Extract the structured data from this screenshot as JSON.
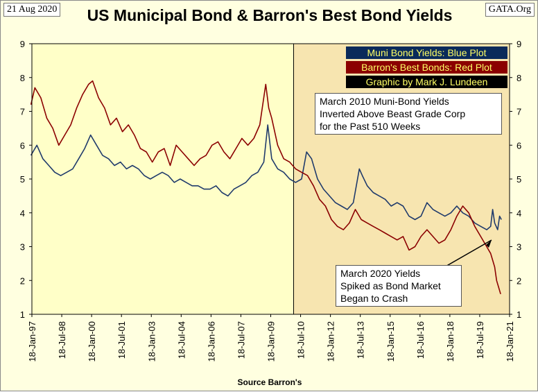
{
  "header": {
    "date": "21 Aug 2020",
    "site": "GATA.Org"
  },
  "chart_data": {
    "type": "line",
    "title": "US Municipal Bond & Barron's Best Bond Yields",
    "xlabel": "Source Barron's",
    "ylabel": "",
    "ylim": [
      1,
      9
    ],
    "y_ticks": [
      1,
      2,
      3,
      4,
      5,
      6,
      7,
      8,
      9
    ],
    "x_tick_labels": [
      "18-Jan-97",
      "18-Jul-98",
      "18-Jan-00",
      "18-Jul-01",
      "18-Jan-03",
      "18-Jul-04",
      "18-Jan-06",
      "18-Jul-07",
      "18-Jan-09",
      "18-Jul-10",
      "18-Jan-12",
      "18-Jul-13",
      "18-Jan-15",
      "18-Jul-16",
      "18-Jan-18",
      "18-Jul-19",
      "18-Jan-21"
    ],
    "grid": false,
    "legend": [
      {
        "text": "Muni Bond Yields: Blue Plot",
        "color": "#0a2a5a"
      },
      {
        "text": "Barron's Best Bonds: Red Plot",
        "color": "#8b0000"
      },
      {
        "text": "Graphic by Mark J. Lundeen",
        "color": "#000000"
      }
    ],
    "legend_position": "top-right",
    "shaded_region_start": 2010.2,
    "annotations": [
      {
        "lines": [
          "March 2010 Muni-Bond Yields",
          "Inverted  Above Beast Grade Corp",
          "for the Past 510 Weeks"
        ]
      },
      {
        "lines": [
          "March 2020 Yields",
          "Spiked as Bond Market",
          "Began to Crash"
        ]
      }
    ],
    "series": [
      {
        "name": "Muni Bond Yields: Blue Plot",
        "color": "#1f3a6b",
        "x": [
          1997.0,
          1997.3,
          1997.6,
          1997.9,
          1998.2,
          1998.5,
          1998.8,
          1999.1,
          1999.4,
          1999.7,
          2000.0,
          2000.3,
          2000.6,
          2000.9,
          2001.2,
          2001.5,
          2001.8,
          2002.1,
          2002.4,
          2002.7,
          2003.0,
          2003.3,
          2003.6,
          2003.9,
          2004.2,
          2004.5,
          2004.8,
          2005.1,
          2005.4,
          2005.7,
          2006.0,
          2006.3,
          2006.6,
          2006.9,
          2007.2,
          2007.5,
          2007.8,
          2008.1,
          2008.4,
          2008.7,
          2008.9,
          2009.1,
          2009.4,
          2009.7,
          2010.0,
          2010.3,
          2010.6,
          2010.85,
          2011.1,
          2011.4,
          2011.7,
          2012.0,
          2012.3,
          2012.6,
          2012.9,
          2013.2,
          2013.5,
          2013.65,
          2013.9,
          2014.2,
          2014.5,
          2014.8,
          2015.1,
          2015.4,
          2015.7,
          2016.0,
          2016.3,
          2016.6,
          2016.9,
          2017.2,
          2017.5,
          2017.8,
          2018.1,
          2018.4,
          2018.7,
          2019.0,
          2019.3,
          2019.6,
          2019.9,
          2020.1,
          2020.2,
          2020.3,
          2020.45,
          2020.55,
          2020.64
        ],
        "values": [
          5.7,
          6.0,
          5.6,
          5.4,
          5.2,
          5.1,
          5.2,
          5.3,
          5.6,
          5.9,
          6.3,
          6.0,
          5.7,
          5.6,
          5.4,
          5.5,
          5.3,
          5.4,
          5.3,
          5.1,
          5.0,
          5.1,
          5.2,
          5.1,
          4.9,
          5.0,
          4.9,
          4.8,
          4.8,
          4.7,
          4.7,
          4.8,
          4.6,
          4.5,
          4.7,
          4.8,
          4.9,
          5.1,
          5.2,
          5.5,
          6.6,
          5.6,
          5.3,
          5.2,
          5.0,
          4.9,
          5.0,
          5.8,
          5.6,
          5.0,
          4.7,
          4.5,
          4.3,
          4.2,
          4.1,
          4.3,
          5.3,
          5.1,
          4.8,
          4.6,
          4.5,
          4.4,
          4.2,
          4.3,
          4.2,
          3.9,
          3.8,
          3.9,
          4.3,
          4.1,
          4.0,
          3.9,
          4.0,
          4.2,
          4.0,
          3.9,
          3.7,
          3.6,
          3.5,
          3.6,
          4.1,
          3.7,
          3.5,
          3.9,
          3.8
        ]
      },
      {
        "name": "Barron's Best Bonds: Red Plot",
        "color": "#8b0000",
        "x": [
          1997.0,
          1997.2,
          1997.5,
          1997.8,
          1998.1,
          1998.4,
          1998.7,
          1999.0,
          1999.3,
          1999.6,
          1999.9,
          2000.1,
          2000.4,
          2000.7,
          2001.0,
          2001.3,
          2001.6,
          2001.9,
          2002.2,
          2002.5,
          2002.8,
          2003.1,
          2003.4,
          2003.7,
          2004.0,
          2004.3,
          2004.6,
          2004.9,
          2005.2,
          2005.5,
          2005.8,
          2006.1,
          2006.4,
          2006.7,
          2007.0,
          2007.3,
          2007.6,
          2007.9,
          2008.2,
          2008.5,
          2008.8,
          2008.95,
          2009.1,
          2009.4,
          2009.7,
          2010.0,
          2010.3,
          2010.6,
          2010.9,
          2011.2,
          2011.5,
          2011.8,
          2012.1,
          2012.4,
          2012.7,
          2013.0,
          2013.3,
          2013.6,
          2013.9,
          2014.2,
          2014.5,
          2014.8,
          2015.1,
          2015.4,
          2015.7,
          2016.0,
          2016.3,
          2016.6,
          2016.9,
          2017.2,
          2017.5,
          2017.8,
          2018.1,
          2018.4,
          2018.7,
          2019.0,
          2019.3,
          2019.6,
          2019.9,
          2020.1,
          2020.2,
          2020.3,
          2020.4,
          2020.5,
          2020.6
        ],
        "values": [
          7.2,
          7.7,
          7.4,
          6.8,
          6.5,
          6.0,
          6.3,
          6.6,
          7.1,
          7.5,
          7.8,
          7.9,
          7.4,
          7.1,
          6.6,
          6.8,
          6.4,
          6.6,
          6.3,
          5.9,
          5.8,
          5.5,
          5.8,
          5.9,
          5.4,
          6.0,
          5.8,
          5.6,
          5.4,
          5.6,
          5.7,
          6.0,
          6.1,
          5.8,
          5.6,
          5.9,
          6.2,
          6.0,
          6.2,
          6.6,
          7.8,
          7.1,
          6.8,
          6.0,
          5.6,
          5.5,
          5.3,
          5.2,
          5.1,
          4.8,
          4.4,
          4.2,
          3.8,
          3.6,
          3.5,
          3.7,
          4.1,
          3.8,
          3.7,
          3.6,
          3.5,
          3.4,
          3.3,
          3.2,
          3.3,
          2.9,
          3.0,
          3.3,
          3.5,
          3.3,
          3.1,
          3.2,
          3.5,
          3.9,
          4.2,
          4.0,
          3.6,
          3.3,
          3.0,
          2.8,
          2.6,
          2.4,
          2.0,
          1.8,
          1.6
        ]
      }
    ]
  }
}
